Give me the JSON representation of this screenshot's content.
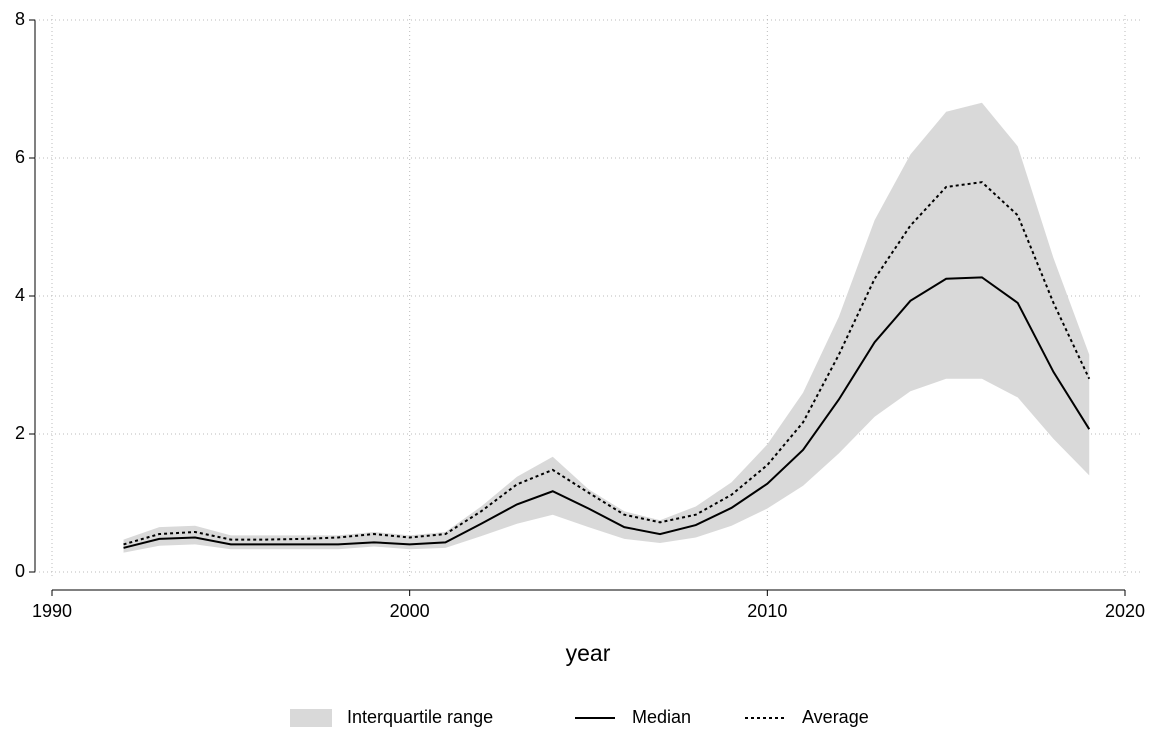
{
  "chart_data": {
    "type": "line",
    "x_label": "year",
    "x": [
      1992,
      1993,
      1994,
      1995,
      1996,
      1997,
      1998,
      1999,
      2000,
      2001,
      2002,
      2003,
      2004,
      2005,
      2006,
      2007,
      2008,
      2009,
      2010,
      2011,
      2012,
      2013,
      2014,
      2015,
      2016,
      2017,
      2018,
      2019
    ],
    "series": [
      {
        "name": "Interquartile range",
        "color": "#d9d9d9",
        "lower": [
          0.28,
          0.38,
          0.4,
          0.33,
          0.33,
          0.33,
          0.33,
          0.37,
          0.33,
          0.35,
          0.52,
          0.7,
          0.83,
          0.65,
          0.48,
          0.42,
          0.5,
          0.67,
          0.92,
          1.25,
          1.72,
          2.25,
          2.62,
          2.8,
          2.8,
          2.53,
          1.93,
          1.4
        ],
        "upper": [
          0.47,
          0.65,
          0.67,
          0.53,
          0.53,
          0.53,
          0.53,
          0.58,
          0.53,
          0.58,
          0.95,
          1.38,
          1.67,
          1.2,
          0.88,
          0.75,
          0.95,
          1.3,
          1.85,
          2.6,
          3.7,
          5.1,
          6.05,
          6.67,
          6.8,
          6.17,
          4.55,
          3.15
        ]
      },
      {
        "name": "Median",
        "color": "#000000",
        "values": [
          0.35,
          0.48,
          0.5,
          0.4,
          0.4,
          0.4,
          0.4,
          0.43,
          0.4,
          0.43,
          0.7,
          0.98,
          1.17,
          0.92,
          0.65,
          0.55,
          0.68,
          0.93,
          1.28,
          1.77,
          2.5,
          3.33,
          3.93,
          4.25,
          4.27,
          3.9,
          2.9,
          2.07
        ]
      },
      {
        "name": "Average",
        "color": "#000000",
        "dashed": true,
        "values": [
          0.4,
          0.55,
          0.58,
          0.47,
          0.47,
          0.48,
          0.5,
          0.55,
          0.5,
          0.55,
          0.88,
          1.27,
          1.48,
          1.15,
          0.83,
          0.72,
          0.83,
          1.12,
          1.55,
          2.17,
          3.15,
          4.25,
          5.02,
          5.58,
          5.65,
          5.17,
          3.9,
          2.8
        ]
      }
    ],
    "xlim": [
      1990,
      2020
    ],
    "xticks": [
      1990,
      2000,
      2010,
      2020
    ],
    "ylim": [
      0,
      8
    ],
    "yticks": [
      0,
      2,
      4,
      6,
      8
    ],
    "grid": true,
    "legend": "bottom"
  }
}
